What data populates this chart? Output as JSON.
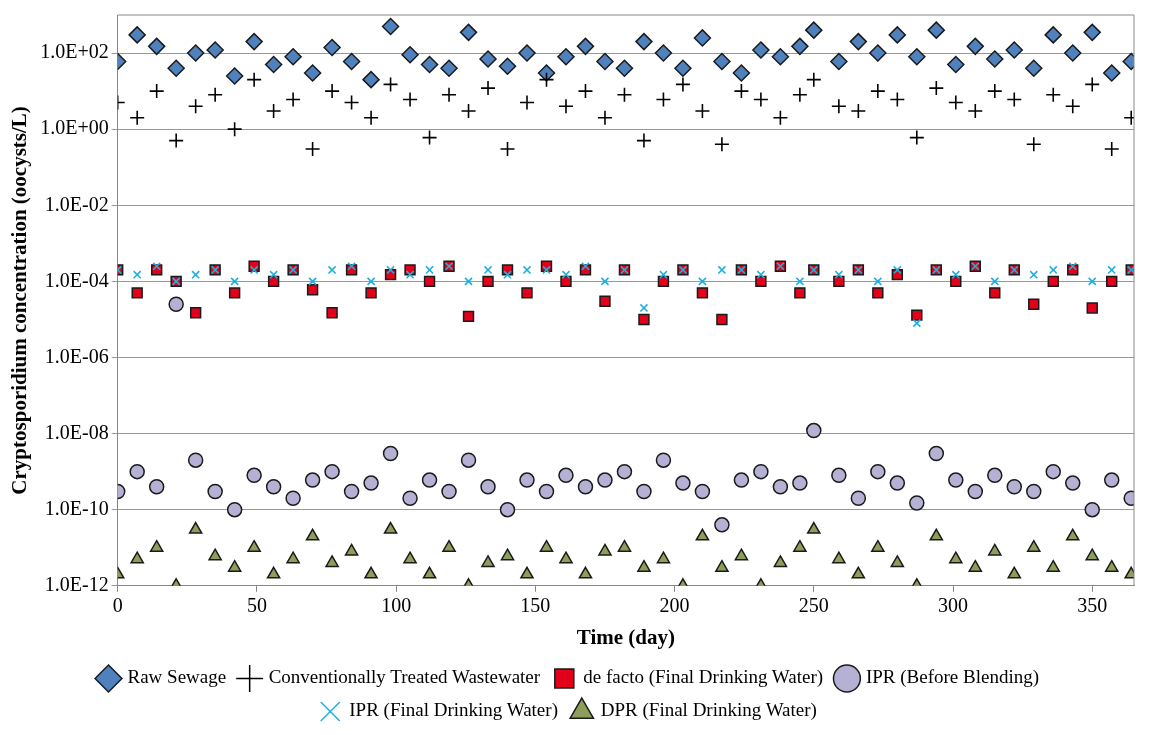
{
  "chart_data": {
    "type": "scatter",
    "xlabel": "Time (day)",
    "ylabel": "Cryptosporidium concentration (oocysts/L)",
    "x": [
      0,
      7,
      14,
      21,
      28,
      35,
      42,
      49,
      56,
      63,
      70,
      77,
      84,
      91,
      98,
      105,
      112,
      119,
      126,
      133,
      140,
      147,
      154,
      161,
      168,
      175,
      182,
      189,
      196,
      203,
      210,
      217,
      224,
      231,
      238,
      245,
      250,
      259,
      266,
      273,
      280,
      287,
      294,
      301,
      308,
      315,
      322,
      329,
      336,
      343,
      350,
      357,
      364
    ],
    "xlim": [
      0,
      365
    ],
    "xticks": [
      0,
      50,
      100,
      150,
      200,
      250,
      300,
      350
    ],
    "log": "y",
    "ylim": [
      1e-12,
      1000
    ],
    "yticks": [
      {
        "value": 1e-12,
        "label": "1.0E-12"
      },
      {
        "value": 1e-10,
        "label": "1.0E-10"
      },
      {
        "value": 1e-08,
        "label": "1.0E-08"
      },
      {
        "value": 1e-06,
        "label": "1.0E-06"
      },
      {
        "value": 0.0001,
        "label": "1.0E-04"
      },
      {
        "value": 0.01,
        "label": "1.0E-02"
      },
      {
        "value": 1,
        "label": "1.0E+00"
      },
      {
        "value": 100,
        "label": "1.0E+02"
      }
    ],
    "grid": "y",
    "legend": "bottom",
    "series": [
      {
        "name": "Raw Sewage",
        "color": "#4f81bd",
        "marker": "diamond",
        "values": [
          60,
          300,
          150,
          40,
          100,
          120,
          25,
          200,
          50,
          80,
          30,
          140,
          60,
          20,
          500,
          90,
          50,
          40,
          350,
          70,
          45,
          100,
          30,
          80,
          150,
          60,
          40,
          200,
          100,
          40,
          250,
          60,
          30,
          120,
          80,
          150,
          400,
          60,
          200,
          100,
          300,
          80,
          400,
          50,
          150,
          70,
          120,
          40,
          300,
          100,
          350,
          30,
          60
        ]
      },
      {
        "name": "Conventionally Treated Wastewater",
        "color": "#000000",
        "marker": "cross",
        "values": [
          5,
          2,
          10,
          0.5,
          4,
          8,
          1,
          20,
          3,
          6,
          0.3,
          10,
          5,
          2,
          15,
          6,
          0.6,
          8,
          3,
          12,
          0.3,
          5,
          20,
          4,
          10,
          2,
          8,
          0.5,
          6,
          15,
          3,
          0.4,
          10,
          6,
          2,
          8,
          20,
          4,
          3,
          10,
          6,
          0.6,
          12,
          5,
          3,
          10,
          6,
          0.4,
          8,
          4,
          15,
          0.3,
          2
        ]
      },
      {
        "name": "de facto (Final Drinking Water)",
        "color": "#e2001a",
        "marker": "square",
        "values": [
          0.0002,
          5e-05,
          0.0002,
          0.0001,
          1.5e-05,
          0.0002,
          5e-05,
          0.00025,
          0.0001,
          0.0002,
          6e-05,
          1.5e-05,
          0.0002,
          5e-05,
          0.00015,
          0.0002,
          0.0001,
          0.00025,
          1.2e-05,
          0.0001,
          0.0002,
          5e-05,
          0.00025,
          0.0001,
          0.0002,
          3e-05,
          0.0002,
          1e-05,
          0.0001,
          0.0002,
          5e-05,
          1e-05,
          0.0002,
          0.0001,
          0.00025,
          5e-05,
          0.0002,
          0.0001,
          0.0002,
          5e-05,
          0.00015,
          1.3e-05,
          0.0002,
          0.0001,
          0.00025,
          5e-05,
          0.0002,
          2.5e-05,
          0.0001,
          0.0002,
          2e-05,
          0.0001,
          0.0002
        ]
      },
      {
        "name": "IPR (Before Blending)",
        "color": "#b4b1d4",
        "marker": "circle",
        "values": [
          3e-10,
          1e-09,
          4e-10,
          2.5e-05,
          2e-09,
          3e-10,
          1e-10,
          8e-10,
          4e-10,
          2e-10,
          6e-10,
          1e-09,
          3e-10,
          5e-10,
          3e-09,
          2e-10,
          6e-10,
          3e-10,
          2e-09,
          4e-10,
          1e-10,
          6e-10,
          3e-10,
          8e-10,
          4e-10,
          6e-10,
          1e-09,
          3e-10,
          2e-09,
          5e-10,
          3e-10,
          4e-11,
          6e-10,
          1e-09,
          4e-10,
          5e-10,
          1.2e-08,
          8e-10,
          2e-10,
          1e-09,
          5e-10,
          1.5e-10,
          3e-09,
          6e-10,
          3e-10,
          8e-10,
          4e-10,
          3e-10,
          1e-09,
          5e-10,
          1e-10,
          6e-10,
          2e-10
        ]
      },
      {
        "name": "IPR (Final Drinking Water)",
        "color": "#1fb0e0",
        "marker": "x",
        "values": [
          0.0002,
          0.00015,
          0.00025,
          0.0001,
          0.00015,
          0.0002,
          0.0001,
          0.0002,
          0.00015,
          0.0002,
          0.0001,
          0.0002,
          0.00025,
          0.0001,
          0.0002,
          0.00015,
          0.0002,
          0.00025,
          0.0001,
          0.0002,
          0.00015,
          0.0002,
          0.0002,
          0.00015,
          0.00025,
          0.0001,
          0.0002,
          2e-05,
          0.00015,
          0.0002,
          0.0001,
          0.0002,
          0.0002,
          0.00015,
          0.00025,
          0.0001,
          0.0002,
          0.00015,
          0.0002,
          0.0001,
          0.0002,
          8e-06,
          0.0002,
          0.00015,
          0.00025,
          0.0001,
          0.0002,
          0.00015,
          0.0002,
          0.00025,
          0.0001,
          0.0002,
          0.0002
        ]
      },
      {
        "name": "DPR (Final Drinking Water)",
        "color": "#8c9e5a",
        "marker": "triangle",
        "values": [
          2e-12,
          5e-12,
          1e-11,
          1e-12,
          3e-11,
          6e-12,
          3e-12,
          1e-11,
          2e-12,
          5e-12,
          2e-11,
          4e-12,
          8e-12,
          2e-12,
          3e-11,
          5e-12,
          2e-12,
          1e-11,
          1e-12,
          4e-12,
          6e-12,
          2e-12,
          1e-11,
          5e-12,
          2e-12,
          8e-12,
          1e-11,
          3e-12,
          5e-12,
          1e-12,
          2e-11,
          3e-12,
          6e-12,
          1e-12,
          4e-12,
          1e-11,
          3e-11,
          5e-12,
          2e-12,
          1e-11,
          4e-12,
          1e-12,
          2e-11,
          5e-12,
          3e-12,
          8e-12,
          2e-12,
          1e-11,
          3e-12,
          2e-11,
          6e-12,
          3e-12,
          2e-12
        ]
      }
    ]
  }
}
